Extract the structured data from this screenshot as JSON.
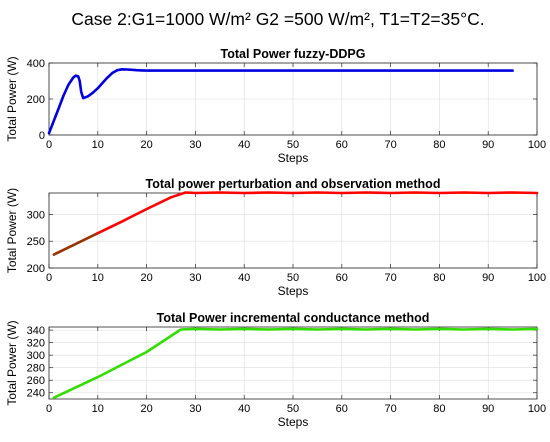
{
  "figure": {
    "title": "Case 2:G1=1000 W/m² G2 =500 W/m², T1=T2=35°C."
  },
  "chart_data": [
    {
      "type": "line",
      "title": "Total Power fuzzy-DDPG",
      "xlabel": "Steps",
      "ylabel": "Total Power (W)",
      "xlim": [
        0,
        100
      ],
      "ylim": [
        0,
        400
      ],
      "xticks": [
        0,
        10,
        20,
        30,
        40,
        50,
        60,
        70,
        80,
        90,
        100
      ],
      "yticks": [
        0,
        200,
        400
      ],
      "grid": true,
      "series": [
        {
          "color": "#0000dd",
          "x": [
            0,
            1,
            2,
            3,
            4,
            5,
            5.5,
            6,
            6.3,
            6.6,
            7,
            8,
            9,
            10,
            11,
            12,
            13,
            14,
            15,
            16,
            17,
            18,
            19,
            20,
            21,
            22,
            25,
            30,
            40,
            50,
            60,
            70,
            80,
            90,
            95
          ],
          "y": [
            10,
            80,
            150,
            220,
            280,
            320,
            330,
            325,
            300,
            240,
            205,
            215,
            235,
            260,
            290,
            320,
            345,
            360,
            365,
            364,
            362,
            360,
            359,
            358,
            358,
            358,
            358,
            358,
            358,
            358,
            358,
            358,
            358,
            358,
            358
          ]
        }
      ]
    },
    {
      "type": "line",
      "title": "Total power perturbation and observation method",
      "xlabel": "Steps",
      "ylabel": "Total Power (W)",
      "xlim": [
        0,
        100
      ],
      "ylim": [
        200,
        340
      ],
      "xticks": [
        0,
        10,
        20,
        30,
        40,
        50,
        60,
        70,
        80,
        90,
        100
      ],
      "yticks": [
        200,
        250,
        300
      ],
      "grid": true,
      "series": [
        {
          "color": "#993300",
          "x": [
            1,
            10
          ],
          "y": [
            225,
            265
          ]
        },
        {
          "color": "#ff0000",
          "x": [
            10,
            15,
            20,
            25,
            28,
            30,
            35,
            40,
            45,
            50,
            55,
            60,
            65,
            70,
            75,
            80,
            85,
            90,
            95,
            100
          ],
          "y": [
            265,
            287,
            310,
            332,
            341,
            340,
            341,
            340,
            341,
            340,
            341,
            340,
            341,
            340,
            341,
            340,
            341,
            340,
            341,
            340
          ]
        }
      ]
    },
    {
      "type": "line",
      "title": "Total Power incremental conductance method",
      "xlabel": "Steps",
      "ylabel": "Total Power (W)",
      "xlim": [
        0,
        100
      ],
      "ylim": [
        230,
        345
      ],
      "xticks": [
        0,
        10,
        20,
        30,
        40,
        50,
        60,
        70,
        80,
        90,
        100
      ],
      "yticks": [
        240,
        260,
        280,
        300,
        320,
        340
      ],
      "grid": true,
      "series": [
        {
          "color": "#33dd00",
          "x": [
            1,
            10,
            20,
            27,
            30,
            35,
            40,
            45,
            50,
            55,
            60,
            65,
            70,
            75,
            80,
            85,
            90,
            95,
            100
          ],
          "y": [
            232,
            265,
            305,
            341,
            342,
            341,
            342,
            341,
            342,
            341,
            342,
            341,
            342,
            341,
            342,
            341,
            342,
            341,
            342
          ]
        }
      ]
    }
  ]
}
